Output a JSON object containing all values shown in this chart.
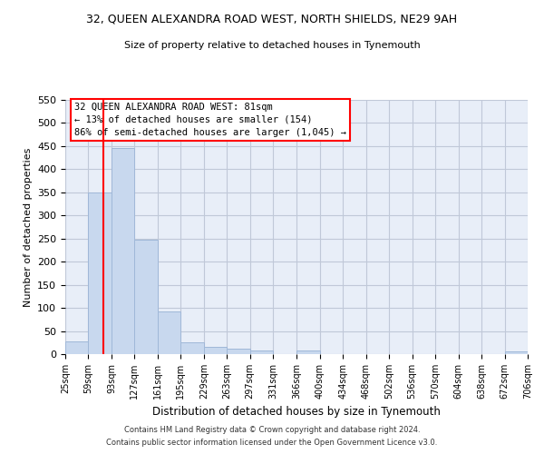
{
  "title": "32, QUEEN ALEXANDRA ROAD WEST, NORTH SHIELDS, NE29 9AH",
  "subtitle": "Size of property relative to detached houses in Tynemouth",
  "xlabel": "Distribution of detached houses by size in Tynemouth",
  "ylabel": "Number of detached properties",
  "bar_color": "#c8d8ee",
  "bar_edge_color": "#a0b8d8",
  "grid_color": "#c0c8d8",
  "background_color": "#e8eef8",
  "vline_x": 81,
  "vline_color": "red",
  "bin_edges": [
    25,
    59,
    93,
    127,
    161,
    195,
    229,
    263,
    297,
    331,
    366,
    400,
    434,
    468,
    502,
    536,
    570,
    604,
    638,
    672,
    706
  ],
  "bar_heights": [
    28,
    350,
    446,
    248,
    92,
    25,
    15,
    12,
    7,
    0,
    7,
    0,
    0,
    0,
    0,
    0,
    0,
    0,
    0,
    5
  ],
  "ylim": [
    0,
    550
  ],
  "yticks": [
    0,
    50,
    100,
    150,
    200,
    250,
    300,
    350,
    400,
    450,
    500,
    550
  ],
  "annotation_text": "32 QUEEN ALEXANDRA ROAD WEST: 81sqm\n← 13% of detached houses are smaller (154)\n86% of semi-detached houses are larger (1,045) →",
  "footer_line1": "Contains HM Land Registry data © Crown copyright and database right 2024.",
  "footer_line2": "Contains public sector information licensed under the Open Government Licence v3.0."
}
